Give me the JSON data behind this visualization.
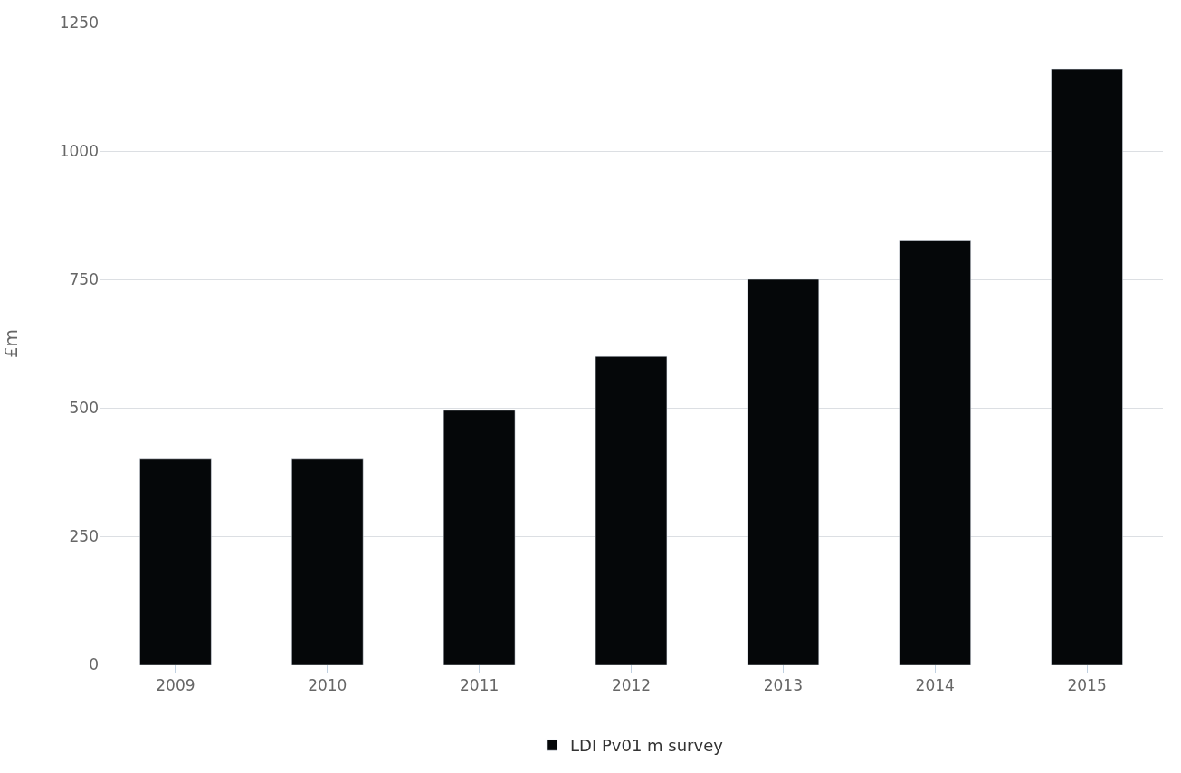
{
  "chart_data": {
    "type": "bar",
    "ylabel": "£m",
    "categories": [
      "2009",
      "2010",
      "2011",
      "2012",
      "2013",
      "2014",
      "2015"
    ],
    "series": [
      {
        "name": "LDI Pv01 m survey",
        "color": "#050709",
        "values": [
          400,
          400,
          495,
          600,
          750,
          825,
          1160
        ]
      }
    ],
    "ylim": [
      0,
      1250
    ],
    "yticks": [
      0,
      250,
      500,
      750,
      1000,
      1250
    ],
    "grid": "y",
    "legend": "bottom"
  }
}
